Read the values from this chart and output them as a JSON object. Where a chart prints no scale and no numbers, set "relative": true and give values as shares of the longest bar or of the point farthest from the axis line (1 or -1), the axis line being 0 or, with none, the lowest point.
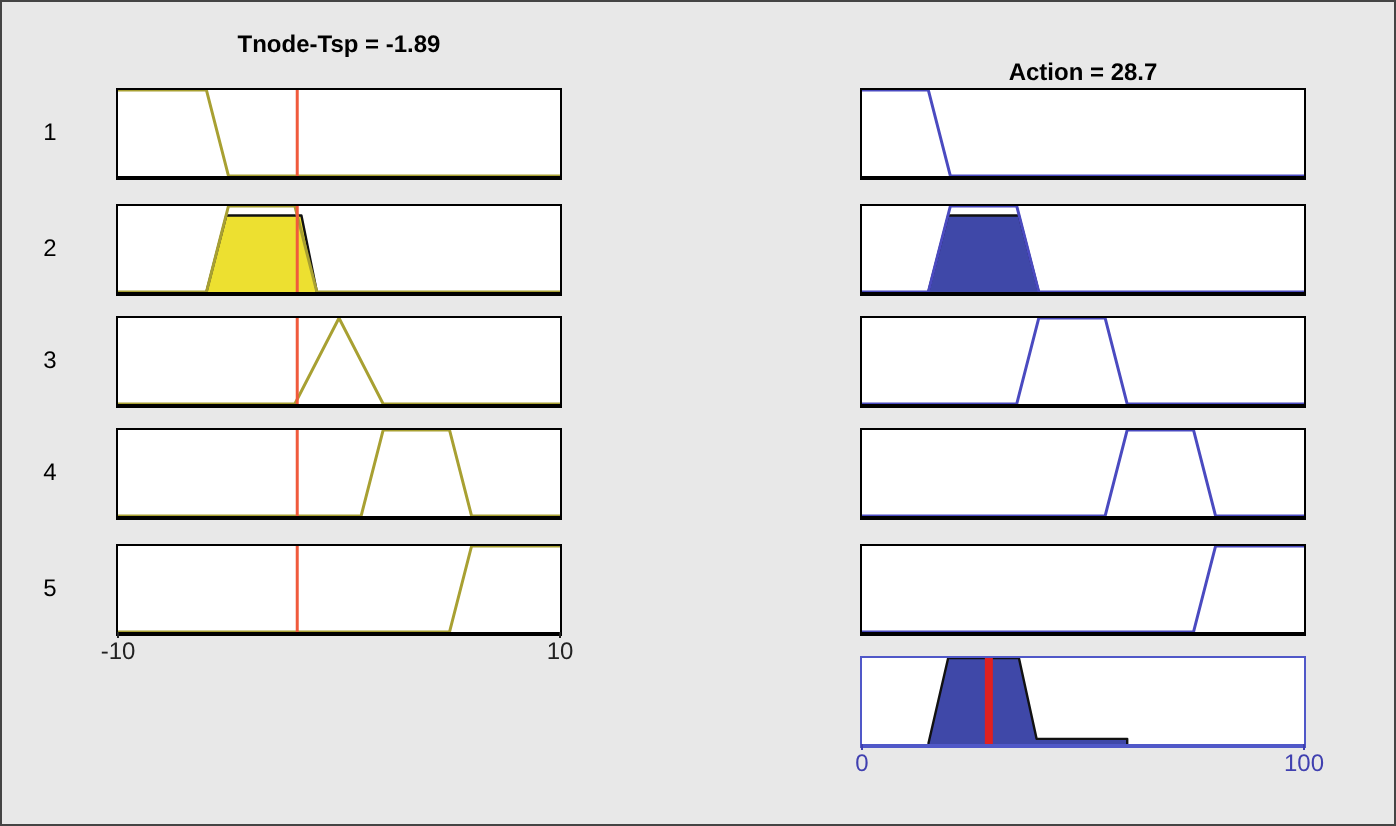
{
  "chart_data": [
    {
      "type": "line",
      "title": "Tnode-Tsp = -1.89",
      "ylabel": "1",
      "relative": true,
      "xlim": [
        -10,
        10
      ],
      "xticks": [
        -10,
        10
      ],
      "tick_labels": false,
      "ref_lines": [
        {
          "axis": "x",
          "value": -1.89,
          "color": "#f05a3c"
        }
      ],
      "series": [
        {
          "type": "line",
          "color": "#a8a032",
          "x": [
            -10,
            -6,
            -5,
            10
          ],
          "values": [
            1,
            1,
            0,
            0
          ]
        }
      ]
    },
    {
      "type": "line",
      "title": "Action = 28.7",
      "relative": true,
      "xlim": [
        0,
        100
      ],
      "xticks": [
        0,
        100
      ],
      "tick_labels": false,
      "series": [
        {
          "type": "line",
          "color": "#4a4ac0",
          "x": [
            0,
            15,
            20,
            100
          ],
          "values": [
            1,
            1,
            0,
            0
          ]
        }
      ]
    },
    {
      "type": "line",
      "ylabel": "2",
      "relative": true,
      "xlim": [
        -10,
        10
      ],
      "xticks": [
        -10,
        10
      ],
      "tick_labels": false,
      "ref_lines": [
        {
          "axis": "x",
          "value": -1.89,
          "color": "#f05a3c"
        }
      ],
      "series": [
        {
          "type": "line",
          "color": "#a8a032",
          "x": [
            -10,
            -6,
            -5,
            -2,
            -1,
            10
          ],
          "values": [
            0,
            0,
            1,
            1,
            0,
            0
          ]
        },
        {
          "type": "area",
          "color": "#ede030",
          "x": [
            -6,
            -5.1,
            -1.7,
            -1
          ],
          "values": [
            0,
            0.89,
            0.89,
            0
          ]
        }
      ]
    },
    {
      "type": "line",
      "relative": true,
      "xlim": [
        0,
        100
      ],
      "xticks": [
        0,
        100
      ],
      "tick_labels": false,
      "series": [
        {
          "type": "line",
          "color": "#4a4ac0",
          "x": [
            0,
            15,
            20,
            35,
            40,
            100
          ],
          "values": [
            0,
            0,
            1,
            1,
            0,
            0
          ]
        },
        {
          "type": "area",
          "color": "#3f48a8",
          "x": [
            15,
            19.5,
            35.5,
            40
          ],
          "values": [
            0,
            0.89,
            0.89,
            0
          ]
        }
      ]
    },
    {
      "type": "line",
      "ylabel": "3",
      "relative": true,
      "xlim": [
        -10,
        10
      ],
      "xticks": [
        -10,
        10
      ],
      "tick_labels": false,
      "ref_lines": [
        {
          "axis": "x",
          "value": -1.89,
          "color": "#f05a3c"
        }
      ],
      "series": [
        {
          "type": "line",
          "color": "#a8a032",
          "x": [
            -10,
            -2,
            0,
            2,
            10
          ],
          "values": [
            0,
            0,
            1,
            0,
            0
          ]
        }
      ]
    },
    {
      "type": "line",
      "relative": true,
      "xlim": [
        0,
        100
      ],
      "xticks": [
        0,
        100
      ],
      "tick_labels": false,
      "series": [
        {
          "type": "line",
          "color": "#4a4ac0",
          "x": [
            0,
            35,
            40,
            55,
            60,
            100
          ],
          "values": [
            0,
            0,
            1,
            1,
            0,
            0
          ]
        }
      ]
    },
    {
      "type": "line",
      "ylabel": "4",
      "relative": true,
      "xlim": [
        -10,
        10
      ],
      "xticks": [
        -10,
        10
      ],
      "tick_labels": false,
      "ref_lines": [
        {
          "axis": "x",
          "value": -1.89,
          "color": "#f05a3c"
        }
      ],
      "series": [
        {
          "type": "line",
          "color": "#a8a032",
          "x": [
            -10,
            1,
            2,
            5,
            6,
            10
          ],
          "values": [
            0,
            0,
            1,
            1,
            0,
            0
          ]
        }
      ]
    },
    {
      "type": "line",
      "relative": true,
      "xlim": [
        0,
        100
      ],
      "xticks": [
        0,
        100
      ],
      "tick_labels": false,
      "series": [
        {
          "type": "line",
          "color": "#4a4ac0",
          "x": [
            0,
            55,
            60,
            75,
            80,
            100
          ],
          "values": [
            0,
            0,
            1,
            1,
            0,
            0
          ]
        }
      ]
    },
    {
      "type": "line",
      "ylabel": "5",
      "relative": true,
      "xlim": [
        -10,
        10
      ],
      "xticks": [
        -10,
        10
      ],
      "tick_labels": "x",
      "ref_lines": [
        {
          "axis": "x",
          "value": -1.89,
          "color": "#f05a3c"
        }
      ],
      "series": [
        {
          "type": "line",
          "color": "#a8a032",
          "x": [
            -10,
            5,
            6,
            10
          ],
          "values": [
            0,
            0,
            1,
            1
          ]
        }
      ]
    },
    {
      "type": "line",
      "relative": true,
      "xlim": [
        0,
        100
      ],
      "xticks": [
        0,
        100
      ],
      "tick_labels": false,
      "series": [
        {
          "type": "line",
          "color": "#4a4ac0",
          "x": [
            0,
            75,
            80,
            100
          ],
          "values": [
            0,
            0,
            1,
            1
          ]
        }
      ]
    },
    {
      "type": "area",
      "relative": true,
      "xlim": [
        0,
        100
      ],
      "xticks": [
        0,
        100
      ],
      "tick_labels": "x",
      "ref_lines": [
        {
          "axis": "x",
          "value": 28.7,
          "color": "#e02020"
        }
      ],
      "series": [
        {
          "type": "area",
          "color": "#3f48a8",
          "x": [
            15,
            19.5,
            35.5,
            39.5,
            60,
            60
          ],
          "values": [
            0,
            1,
            1,
            0.06,
            0.06,
            0
          ]
        }
      ]
    }
  ]
}
